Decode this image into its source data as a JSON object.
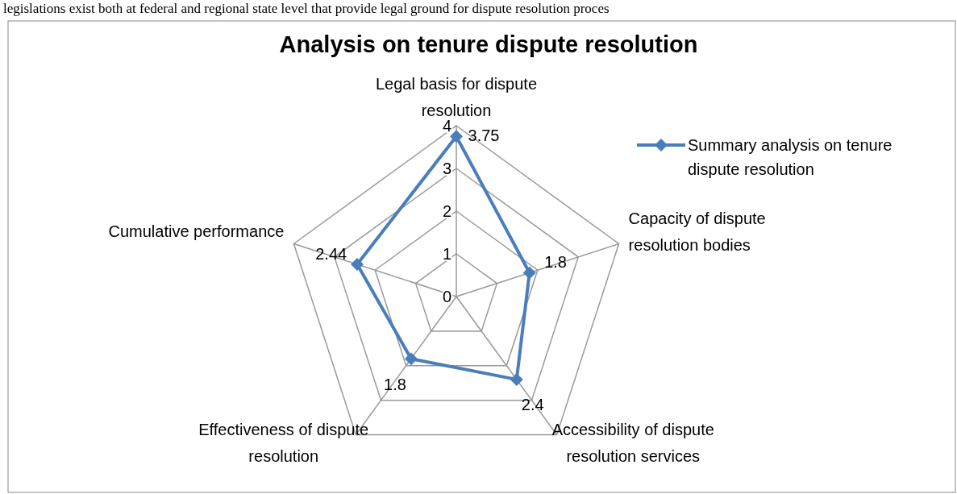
{
  "chart_data": {
    "type": "radar",
    "title": "Analysis on tenure dispute resolution",
    "annotations": [
      "legislations exist both at federal and regional state level that provide legal ground for dispute resolution proces"
    ],
    "categories": [
      "Legal basis for dispute resolution",
      "Capacity of dispute resolution bodies",
      "Accessibility of dispute resolution services",
      "Effectiveness of dispute resolution",
      "Cumulative performance"
    ],
    "series": [
      {
        "name": "Summary analysis on tenure dispute resolution",
        "color": "#4a7ebb",
        "values": [
          3.75,
          1.8,
          2.4,
          1.8,
          2.44
        ]
      }
    ],
    "ylim": [
      0,
      4
    ],
    "yticks": [
      0,
      1,
      2,
      3,
      4
    ],
    "grid": true,
    "legend": "right",
    "marker": "diamond",
    "line_style": "solid",
    "data_labels": true
  }
}
